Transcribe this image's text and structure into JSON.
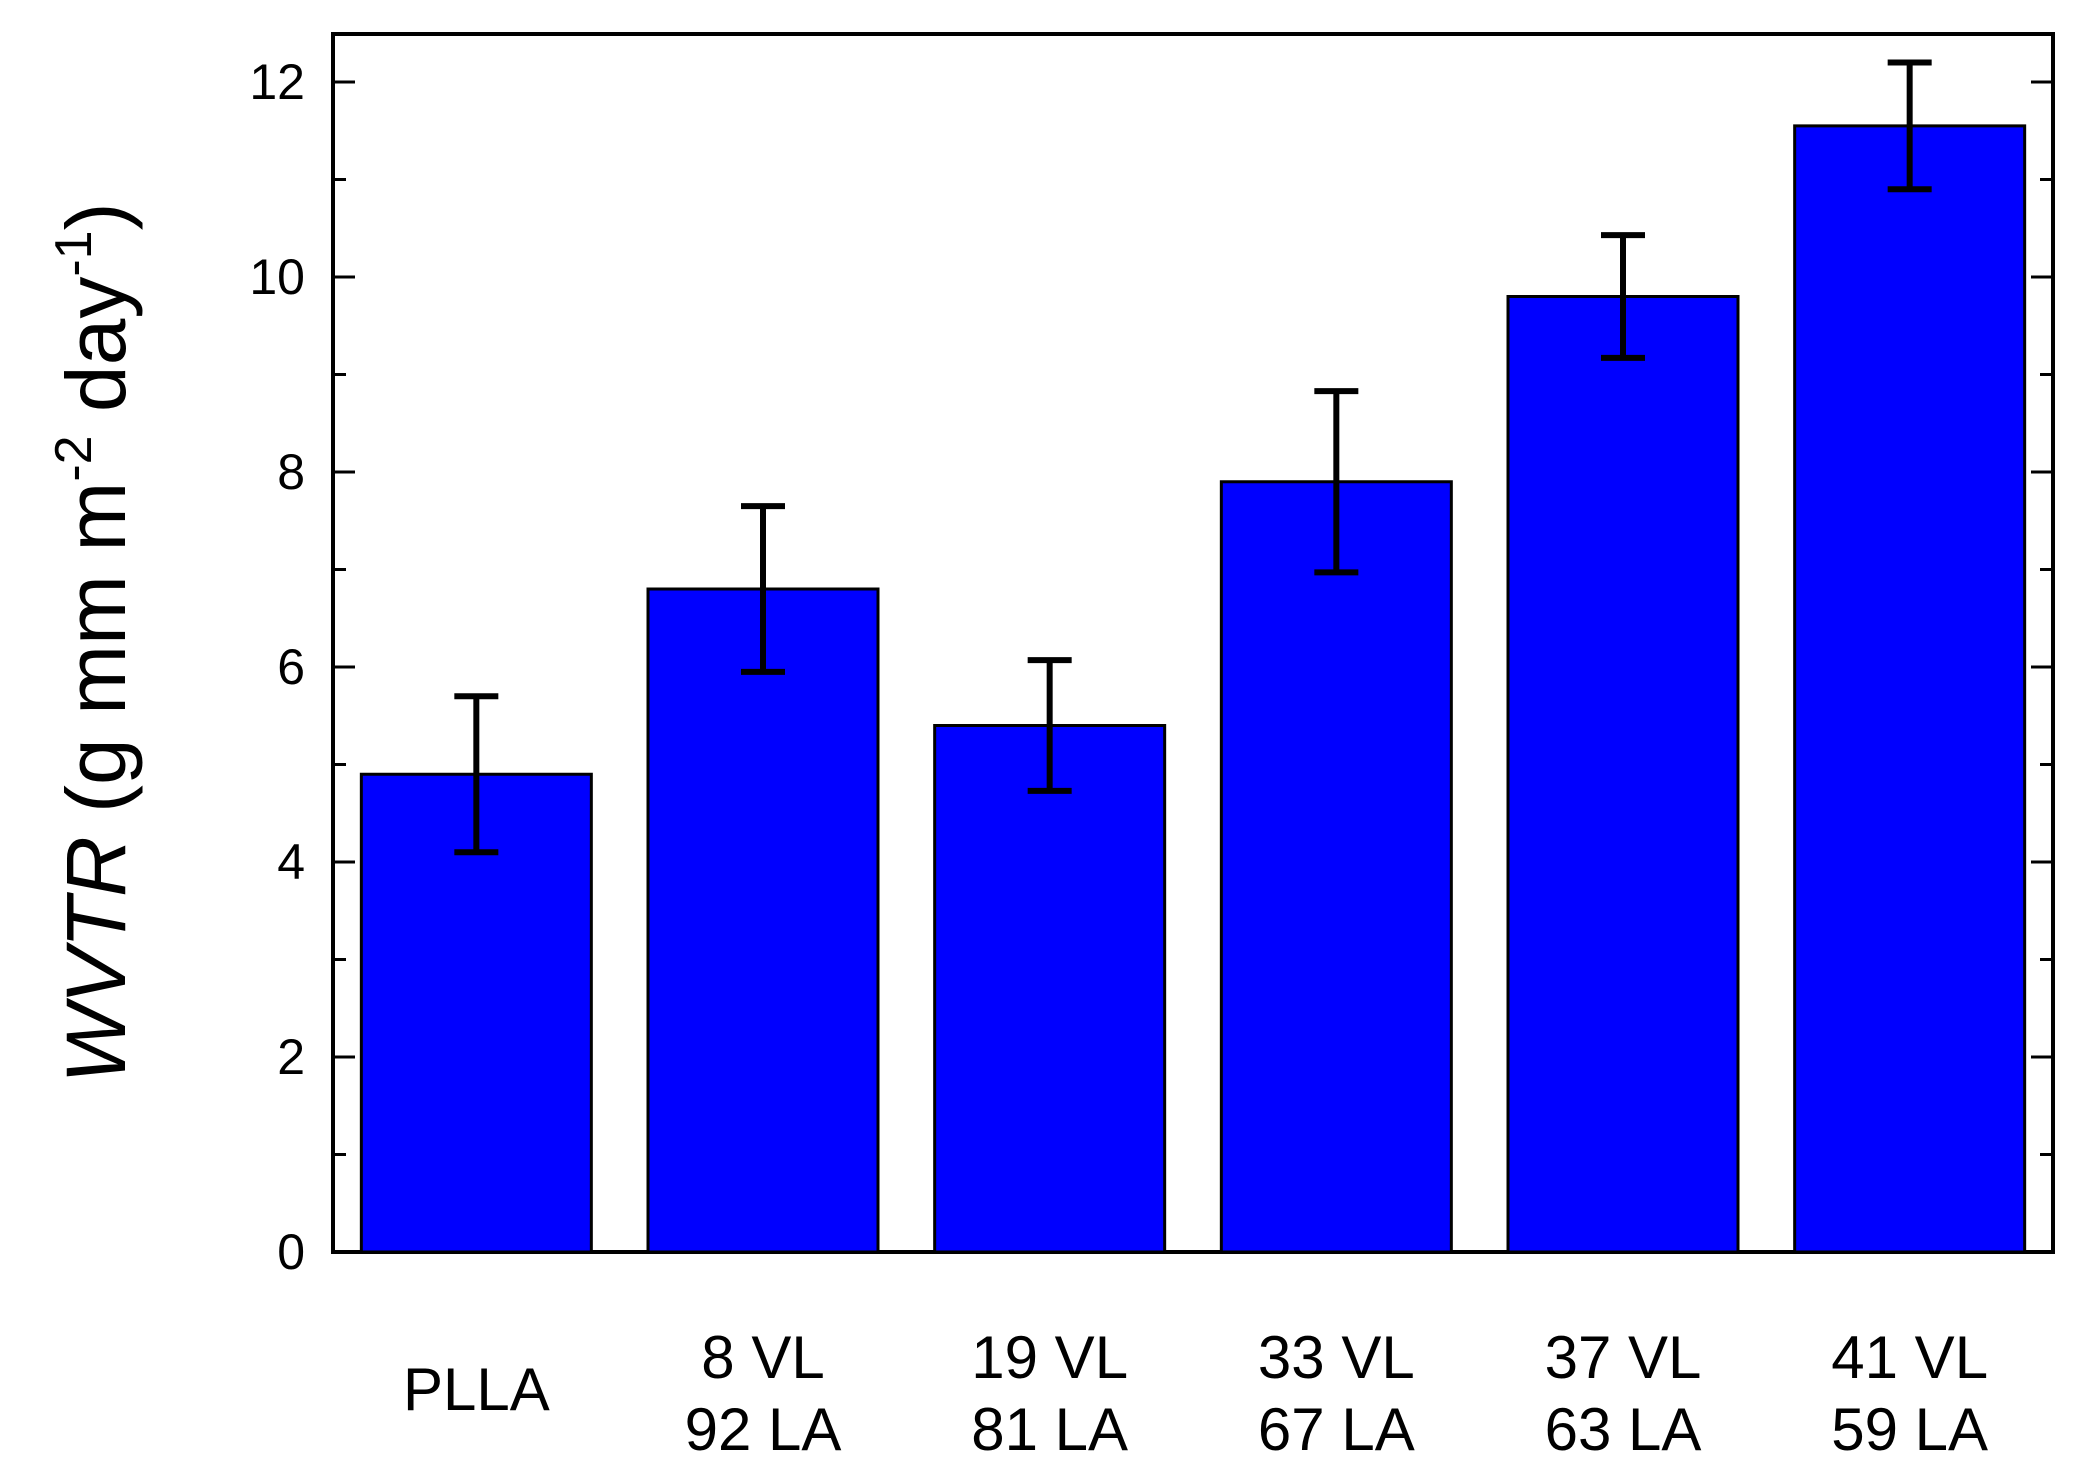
{
  "chart_data": {
    "type": "bar",
    "title": "",
    "xlabel": "",
    "ylabel": {
      "italic": "WVTR",
      "main": " (g mm m",
      "sup1": "-2",
      "mid": " day",
      "sup2": "-1",
      "end": ")"
    },
    "ylim": [
      0,
      12.5
    ],
    "yticks": [
      "0",
      "2",
      "4",
      "6",
      "8",
      "10",
      "12"
    ],
    "categories": [
      [
        "PLLA"
      ],
      [
        "8  VL",
        "92 LA"
      ],
      [
        "19  VL",
        "81 LA"
      ],
      [
        "33  VL",
        "67 LA"
      ],
      [
        "37  VL",
        "63 LA"
      ],
      [
        "41  VL",
        "59 LA"
      ]
    ],
    "values": [
      4.9,
      6.8,
      5.4,
      7.9,
      9.8,
      11.55
    ],
    "errors": [
      0.8,
      0.85,
      0.67,
      0.93,
      0.63,
      0.65
    ],
    "bar_color": "#0000ff",
    "grid": false
  }
}
